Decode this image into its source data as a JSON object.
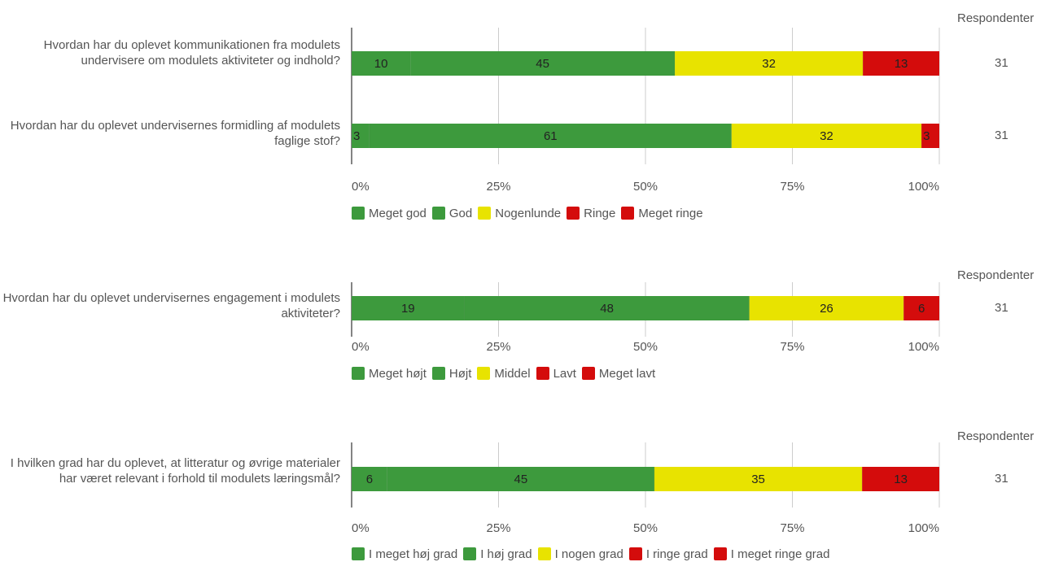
{
  "chart_data": [
    {
      "type": "bar",
      "orientation": "horizontal",
      "stacked": true,
      "percent": true,
      "xlim": [
        0,
        100
      ],
      "x_ticks": [
        "0%",
        "25%",
        "50%",
        "75%",
        "100%"
      ],
      "respondents_header": "Respondenter",
      "legend_position": "bottom",
      "categories": [
        "Hvordan har du oplevet kommunikationen fra modulets undervisere om modulets aktiviteter og indhold?",
        "Hvordan har du oplevet undervisernes formidling af modulets faglige stof?"
      ],
      "respondents": [
        "31",
        "31"
      ],
      "series": [
        {
          "name": "Meget god",
          "color": "#3d9a3d",
          "values": [
            10,
            3
          ]
        },
        {
          "name": "God",
          "color": "#3d9a3d",
          "values": [
            45,
            61
          ]
        },
        {
          "name": "Nogenlunde",
          "color": "#e8e300",
          "values": [
            32,
            32
          ]
        },
        {
          "name": "Ringe",
          "color": "#d40c0c",
          "values": [
            13,
            3
          ]
        },
        {
          "name": "Meget ringe",
          "color": "#d40c0c",
          "values": [
            0,
            0
          ]
        }
      ]
    },
    {
      "type": "bar",
      "orientation": "horizontal",
      "stacked": true,
      "percent": true,
      "xlim": [
        0,
        100
      ],
      "x_ticks": [
        "0%",
        "25%",
        "50%",
        "75%",
        "100%"
      ],
      "respondents_header": "Respondenter",
      "legend_position": "bottom",
      "categories": [
        "Hvordan har du oplevet undervisernes engagement i modulets aktiviteter?"
      ],
      "respondents": [
        "31"
      ],
      "series": [
        {
          "name": "Meget højt",
          "color": "#3d9a3d",
          "values": [
            19
          ]
        },
        {
          "name": "Højt",
          "color": "#3d9a3d",
          "values": [
            48
          ]
        },
        {
          "name": "Middel",
          "color": "#e8e300",
          "values": [
            26
          ]
        },
        {
          "name": "Lavt",
          "color": "#d40c0c",
          "values": [
            6
          ]
        },
        {
          "name": "Meget lavt",
          "color": "#d40c0c",
          "values": [
            0
          ]
        }
      ]
    },
    {
      "type": "bar",
      "orientation": "horizontal",
      "stacked": true,
      "percent": true,
      "xlim": [
        0,
        100
      ],
      "x_ticks": [
        "0%",
        "25%",
        "50%",
        "75%",
        "100%"
      ],
      "respondents_header": "Respondenter",
      "legend_position": "bottom",
      "categories": [
        "I hvilken grad har du oplevet, at litteratur og øvrige materialer har været relevant i forhold til modulets læringsmål?"
      ],
      "respondents": [
        "31"
      ],
      "series": [
        {
          "name": "I meget høj grad",
          "color": "#3d9a3d",
          "values": [
            6
          ]
        },
        {
          "name": "I høj grad",
          "color": "#3d9a3d",
          "values": [
            45
          ]
        },
        {
          "name": "I nogen grad",
          "color": "#e8e300",
          "values": [
            35
          ]
        },
        {
          "name": "I ringe grad",
          "color": "#d40c0c",
          "values": [
            13
          ]
        },
        {
          "name": "I meget ringe grad",
          "color": "#d40c0c",
          "values": [
            0
          ]
        }
      ]
    }
  ]
}
